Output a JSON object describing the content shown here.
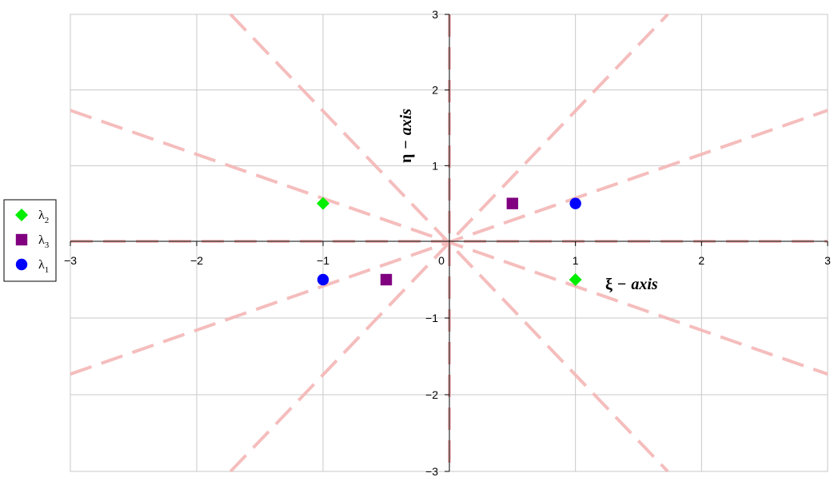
{
  "chart_data": {
    "type": "scatter",
    "title": "",
    "xlabel": {
      "symbol": "ξ",
      "dash": "−",
      "word": "axis"
    },
    "ylabel": {
      "symbol": "η",
      "dash": "−",
      "word": "axis"
    },
    "xlim": [
      -3,
      3
    ],
    "ylim": [
      -3,
      3
    ],
    "x_ticks": [
      -3,
      -2,
      -1,
      0,
      1,
      2,
      3
    ],
    "y_ticks": [
      -3,
      -2,
      -1,
      1,
      2,
      3
    ],
    "grid": true,
    "legend_position": "left",
    "reference_lines": {
      "style": "dashed",
      "color": "#f4b6b6",
      "slopes": [
        0,
        0.577,
        1.732,
        -0.577,
        -1.732
      ],
      "includes_vertical": true
    },
    "series": [
      {
        "name": "λ",
        "sub": "2",
        "marker": "diamond",
        "color": "#00ee00",
        "points": [
          {
            "x": -1,
            "y": 0.5
          },
          {
            "x": 1,
            "y": -0.5
          }
        ]
      },
      {
        "name": "λ",
        "sub": "3",
        "marker": "square",
        "color": "#800080",
        "points": [
          {
            "x": 0.5,
            "y": 0.5
          },
          {
            "x": -0.5,
            "y": -0.5
          }
        ]
      },
      {
        "name": "λ",
        "sub": "1",
        "marker": "circle",
        "color": "#0000ff",
        "points": [
          {
            "x": 1,
            "y": 0.5
          },
          {
            "x": -1,
            "y": -0.5
          }
        ]
      }
    ]
  }
}
